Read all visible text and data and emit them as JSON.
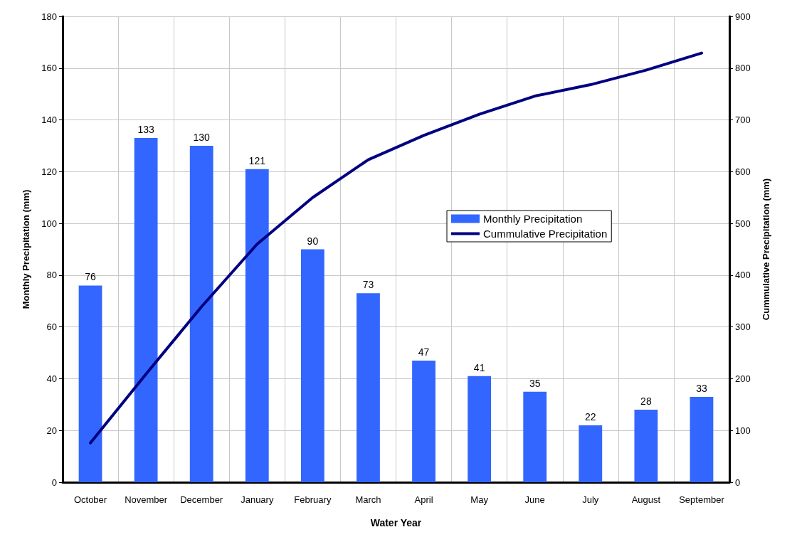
{
  "chart_data": {
    "type": "bar",
    "xlabel": "Water Year",
    "ylabel": "Monthly Precipitation (mm)",
    "y2label": "Cummulative Precipitation (mm)",
    "categories": [
      "October",
      "November",
      "December",
      "January",
      "February",
      "March",
      "April",
      "May",
      "June",
      "July",
      "August",
      "September"
    ],
    "series": [
      {
        "name": "Monthly Precipitation",
        "color": "#3366ff",
        "values": [
          76,
          133,
          130,
          121,
          90,
          73,
          47,
          41,
          35,
          22,
          28,
          33
        ],
        "value_labels": [
          "76",
          "133",
          "130",
          "121",
          "90",
          "73",
          "47",
          "41",
          "35",
          "22",
          "28",
          "33"
        ]
      },
      {
        "name": "Cummulative Precipitation",
        "type": "line",
        "axis": "y2",
        "color": "#000080",
        "values": [
          76,
          209,
          339,
          460,
          550,
          623,
          670,
          711,
          746,
          768,
          796,
          829
        ]
      }
    ],
    "ylim": [
      0,
      180
    ],
    "yticks": [
      0,
      20,
      40,
      60,
      80,
      100,
      120,
      140,
      160,
      180
    ],
    "y2lim": [
      0,
      900
    ],
    "y2ticks": [
      0,
      100,
      200,
      300,
      400,
      500,
      600,
      700,
      800,
      900
    ],
    "grid": true,
    "legend": "right",
    "marker": "none",
    "line_style": "solid"
  }
}
